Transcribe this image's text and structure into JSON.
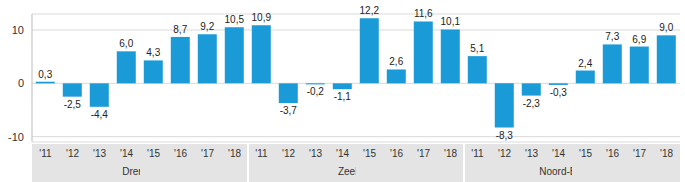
{
  "chart_data": {
    "type": "bar",
    "categories": [
      "'11",
      "'12",
      "'13",
      "'14",
      "'15",
      "'16",
      "'17",
      "'18",
      "'11",
      "'12",
      "'13",
      "'14",
      "'15",
      "'16",
      "'17",
      "'18",
      "'11",
      "'12",
      "'13",
      "'14",
      "'15",
      "'16",
      "'17",
      "'18"
    ],
    "groups": [
      "Drenthe",
      "Zeeland",
      "Noord-Brabant"
    ],
    "values": [
      0.3,
      -2.5,
      -4.4,
      6.0,
      4.3,
      8.7,
      9.2,
      10.5,
      10.9,
      -3.7,
      -0.2,
      -1.1,
      12.2,
      2.6,
      11.6,
      10.1,
      5.1,
      -8.3,
      -2.3,
      -0.3,
      2.4,
      7.3,
      6.9,
      9.0
    ],
    "value_labels": [
      "0,3",
      "-2,5",
      "-4,4",
      "6,0",
      "4,3",
      "8,7",
      "9,2",
      "10,5",
      "10,9",
      "-3,7",
      "-0,2",
      "-1,1",
      "12,2",
      "2,6",
      "11,6",
      "10,1",
      "5,1",
      "-8,3",
      "-2,3",
      "-0,3",
      "2,4",
      "7,3",
      "6,9",
      "9,0"
    ],
    "color": "#1a9ad6",
    "ylim": [
      -11,
      13
    ],
    "yticks": [
      -10,
      0,
      10
    ],
    "grid": true,
    "data_labels": true
  }
}
